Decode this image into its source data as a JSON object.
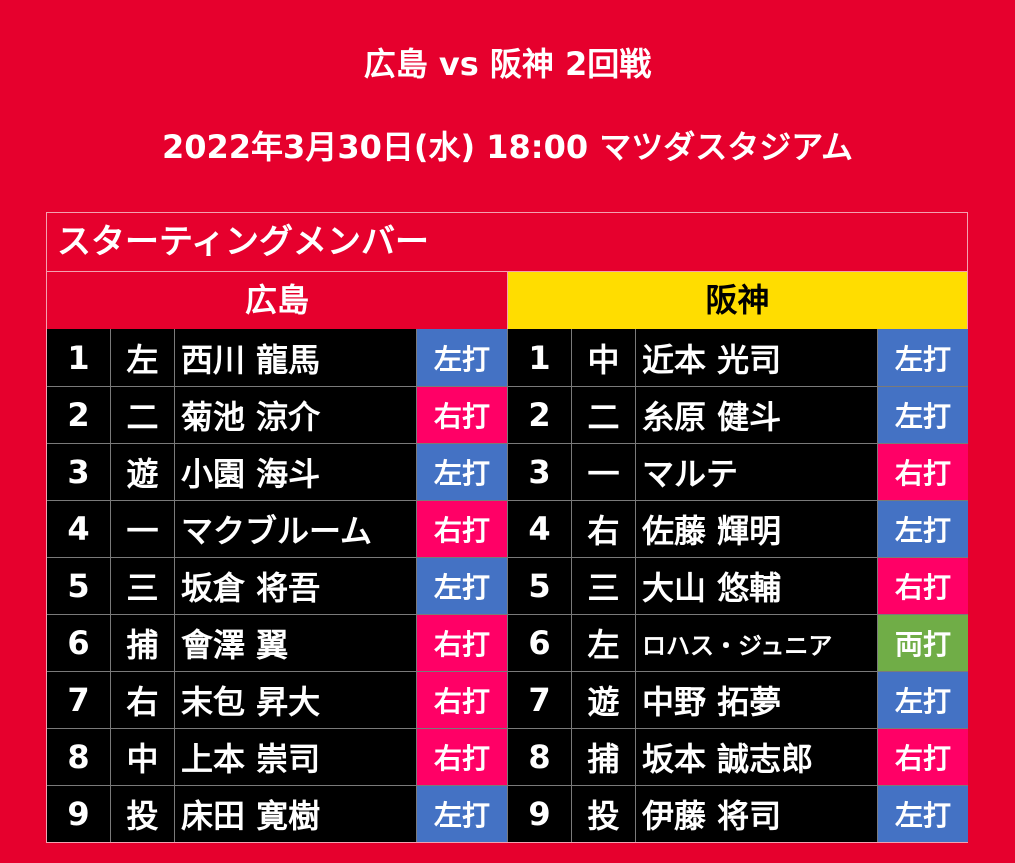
{
  "header": {
    "match_title": "広島 vs 阪神 2回戦",
    "match_info": "2022年3月30日(水) 18:00 マツダスタジアム"
  },
  "panel": {
    "title": "スターティングメンバー"
  },
  "colors": {
    "background": "#e6002d",
    "carp_header": "#e6002d",
    "tigers_header": "#ffdd00",
    "cell": "#000000",
    "bat_left": "#4472c4",
    "bat_right": "#ff0066",
    "bat_switch": "#70ad47"
  },
  "teams": [
    {
      "name": "広島",
      "players": [
        {
          "order": "1",
          "pos": "左",
          "name": "西川 龍馬",
          "bat": "左打"
        },
        {
          "order": "2",
          "pos": "二",
          "name": "菊池 涼介",
          "bat": "右打"
        },
        {
          "order": "3",
          "pos": "遊",
          "name": "小園 海斗",
          "bat": "左打"
        },
        {
          "order": "4",
          "pos": "一",
          "name": "マクブルーム",
          "bat": "右打"
        },
        {
          "order": "5",
          "pos": "三",
          "name": "坂倉 将吾",
          "bat": "左打"
        },
        {
          "order": "6",
          "pos": "捕",
          "name": "會澤 翼",
          "bat": "右打"
        },
        {
          "order": "7",
          "pos": "右",
          "name": "末包 昇大",
          "bat": "右打"
        },
        {
          "order": "8",
          "pos": "中",
          "name": "上本 崇司",
          "bat": "右打"
        },
        {
          "order": "9",
          "pos": "投",
          "name": "床田 寛樹",
          "bat": "左打"
        }
      ]
    },
    {
      "name": "阪神",
      "players": [
        {
          "order": "1",
          "pos": "中",
          "name": "近本 光司",
          "bat": "左打"
        },
        {
          "order": "2",
          "pos": "二",
          "name": "糸原 健斗",
          "bat": "左打"
        },
        {
          "order": "3",
          "pos": "一",
          "name": "マルテ",
          "bat": "右打"
        },
        {
          "order": "4",
          "pos": "右",
          "name": "佐藤 輝明",
          "bat": "左打"
        },
        {
          "order": "5",
          "pos": "三",
          "name": "大山 悠輔",
          "bat": "右打"
        },
        {
          "order": "6",
          "pos": "左",
          "name": "ロハス・ジュニア",
          "bat": "両打"
        },
        {
          "order": "7",
          "pos": "遊",
          "name": "中野 拓夢",
          "bat": "左打"
        },
        {
          "order": "8",
          "pos": "捕",
          "name": "坂本 誠志郎",
          "bat": "右打"
        },
        {
          "order": "9",
          "pos": "投",
          "name": "伊藤 将司",
          "bat": "左打"
        }
      ]
    }
  ]
}
